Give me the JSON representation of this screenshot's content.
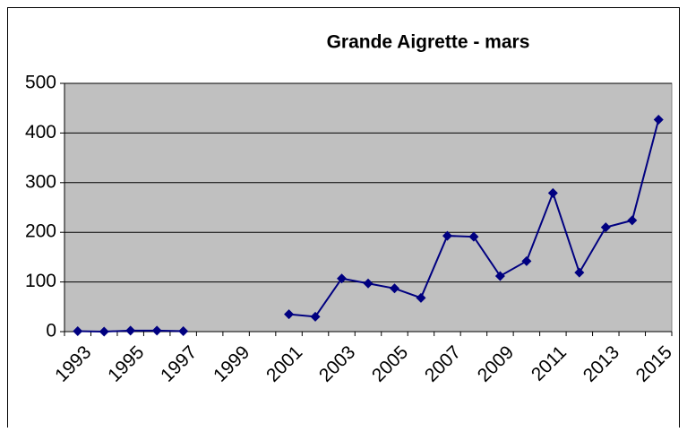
{
  "chart_data": {
    "type": "line",
    "title": "Grande Aigrette - mars",
    "categories": [
      "1993",
      null,
      "1995",
      null,
      "1997",
      null,
      "1999",
      null,
      "2001",
      null,
      "2003",
      null,
      "2005",
      null,
      "2007",
      null,
      "2009",
      null,
      "2011",
      null,
      "2013",
      null,
      "2015"
    ],
    "series": [
      {
        "name": "mars",
        "color": "#000080",
        "values": [
          1,
          0,
          2,
          2,
          1,
          null,
          null,
          null,
          35,
          30,
          107,
          97,
          87,
          68,
          193,
          191,
          112,
          142,
          279,
          119,
          210,
          224,
          427
        ]
      }
    ],
    "ylim": [
      0,
      500
    ],
    "yticks": [
      0,
      100,
      200,
      300,
      400,
      500
    ],
    "grid": true,
    "plot_background": "#c0c0c0"
  }
}
